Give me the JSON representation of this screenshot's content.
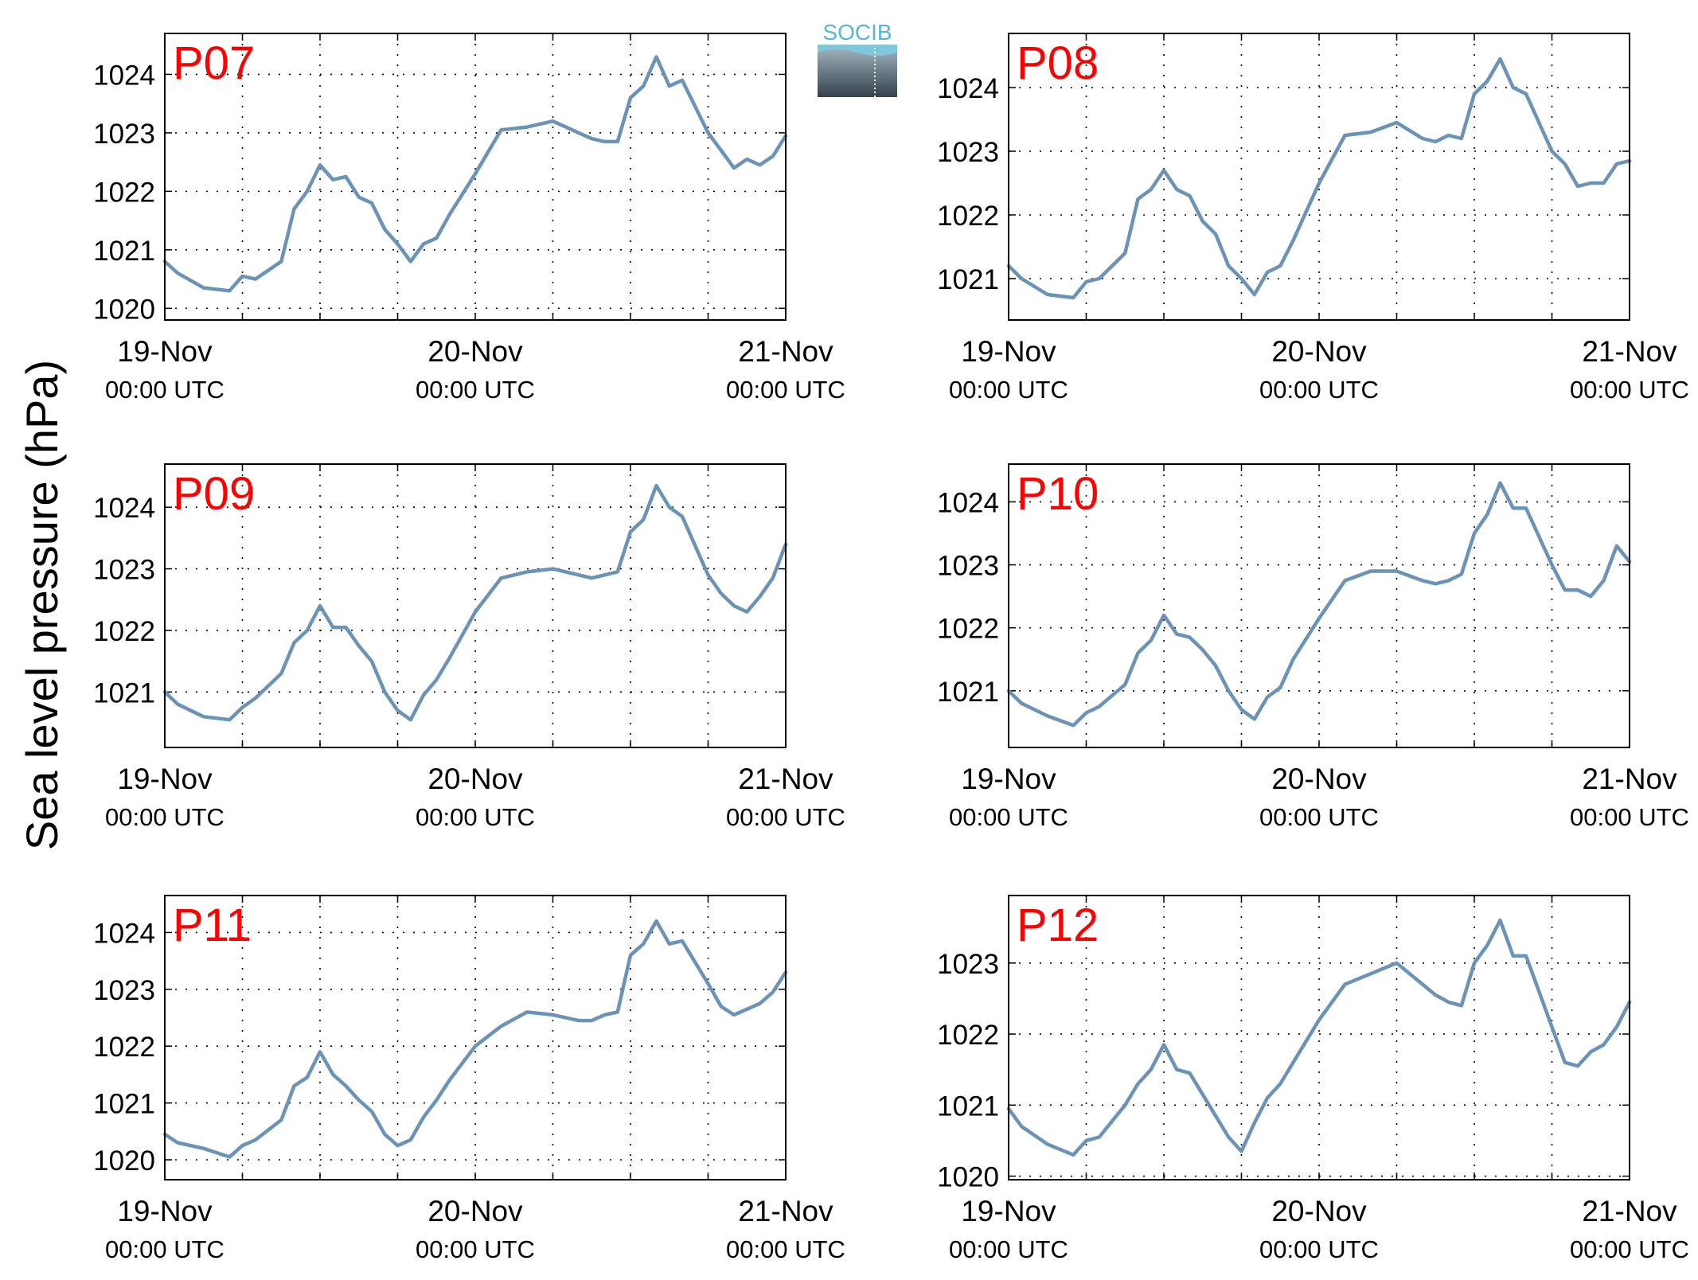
{
  "figure": {
    "ylabel": "Sea level pressure (hPa)",
    "logo_text": "SOCIB",
    "line_color": "#6b93b7",
    "label_color": "#ff0000",
    "grid": "dotted"
  },
  "chart_data": [
    {
      "type": "line",
      "panel_label": "P07",
      "x_ticks": [
        {
          "date": "19-Nov",
          "time": "00:00 UTC"
        },
        {
          "date": "20-Nov",
          "time": "00:00 UTC"
        },
        {
          "date": "21-Nov",
          "time": "00:00 UTC"
        }
      ],
      "x": [
        "2014-11-19T00:00",
        "2014-11-19T01:00",
        "2014-11-19T03:00",
        "2014-11-19T05:00",
        "2014-11-19T06:00",
        "2014-11-19T07:00",
        "2014-11-19T09:00",
        "2014-11-19T10:00",
        "2014-11-19T11:00",
        "2014-11-19T12:00",
        "2014-11-19T13:00",
        "2014-11-19T14:00",
        "2014-11-19T15:00",
        "2014-11-19T16:00",
        "2014-11-19T17:00",
        "2014-11-19T18:00",
        "2014-11-19T19:00",
        "2014-11-19T20:00",
        "2014-11-19T21:00",
        "2014-11-19T22:00",
        "2014-11-20T00:00",
        "2014-11-20T02:00",
        "2014-11-20T04:00",
        "2014-11-20T06:00",
        "2014-11-20T08:00",
        "2014-11-20T09:00",
        "2014-11-20T10:00",
        "2014-11-20T11:00",
        "2014-11-20T12:00",
        "2014-11-20T13:00",
        "2014-11-20T14:00",
        "2014-11-20T15:00",
        "2014-11-20T16:00",
        "2014-11-20T18:00",
        "2014-11-20T19:00",
        "2014-11-20T20:00",
        "2014-11-20T21:00",
        "2014-11-20T22:00",
        "2014-11-20T23:00",
        "2014-11-21T00:00"
      ],
      "values": [
        1020.8,
        1020.6,
        1020.35,
        1020.3,
        1020.55,
        1020.5,
        1020.8,
        1021.7,
        1022.0,
        1022.45,
        1022.2,
        1022.25,
        1021.9,
        1021.8,
        1021.35,
        1021.1,
        1020.8,
        1021.1,
        1021.2,
        1021.6,
        1022.3,
        1023.05,
        1023.1,
        1023.2,
        1023.0,
        1022.9,
        1022.85,
        1022.85,
        1023.6,
        1023.8,
        1024.3,
        1023.8,
        1023.9,
        1023.0,
        1022.7,
        1022.4,
        1022.55,
        1022.45,
        1022.6,
        1022.95
      ],
      "ylim": [
        1019.8,
        1024.7
      ],
      "yticks": [
        1020,
        1021,
        1022,
        1023,
        1024
      ]
    },
    {
      "type": "line",
      "panel_label": "P08",
      "x_ticks": [
        {
          "date": "19-Nov",
          "time": "00:00 UTC"
        },
        {
          "date": "20-Nov",
          "time": "00:00 UTC"
        },
        {
          "date": "21-Nov",
          "time": "00:00 UTC"
        }
      ],
      "x": [
        "2014-11-19T00:00",
        "2014-11-19T01:00",
        "2014-11-19T03:00",
        "2014-11-19T05:00",
        "2014-11-19T06:00",
        "2014-11-19T07:00",
        "2014-11-19T09:00",
        "2014-11-19T10:00",
        "2014-11-19T11:00",
        "2014-11-19T12:00",
        "2014-11-19T13:00",
        "2014-11-19T14:00",
        "2014-11-19T15:00",
        "2014-11-19T16:00",
        "2014-11-19T17:00",
        "2014-11-19T18:00",
        "2014-11-19T19:00",
        "2014-11-19T20:00",
        "2014-11-19T21:00",
        "2014-11-19T22:00",
        "2014-11-20T00:00",
        "2014-11-20T02:00",
        "2014-11-20T04:00",
        "2014-11-20T06:00",
        "2014-11-20T08:00",
        "2014-11-20T09:00",
        "2014-11-20T10:00",
        "2014-11-20T11:00",
        "2014-11-20T12:00",
        "2014-11-20T13:00",
        "2014-11-20T14:00",
        "2014-11-20T15:00",
        "2014-11-20T16:00",
        "2014-11-20T18:00",
        "2014-11-20T19:00",
        "2014-11-20T20:00",
        "2014-11-20T21:00",
        "2014-11-20T22:00",
        "2014-11-20T23:00",
        "2014-11-21T00:00"
      ],
      "values": [
        1021.2,
        1021.0,
        1020.75,
        1020.7,
        1020.95,
        1021.0,
        1021.4,
        1022.25,
        1022.4,
        1022.7,
        1022.4,
        1022.3,
        1021.9,
        1021.7,
        1021.2,
        1021.0,
        1020.75,
        1021.1,
        1021.2,
        1021.6,
        1022.5,
        1023.25,
        1023.3,
        1023.45,
        1023.2,
        1023.15,
        1023.25,
        1023.2,
        1023.9,
        1024.1,
        1024.45,
        1024.0,
        1023.9,
        1023.0,
        1022.8,
        1022.45,
        1022.5,
        1022.5,
        1022.8,
        1022.85
      ],
      "ylim": [
        1020.35,
        1024.85
      ],
      "yticks": [
        1021,
        1022,
        1023,
        1024
      ]
    },
    {
      "type": "line",
      "panel_label": "P09",
      "x_ticks": [
        {
          "date": "19-Nov",
          "time": "00:00 UTC"
        },
        {
          "date": "20-Nov",
          "time": "00:00 UTC"
        },
        {
          "date": "21-Nov",
          "time": "00:00 UTC"
        }
      ],
      "x": [
        "2014-11-19T00:00",
        "2014-11-19T01:00",
        "2014-11-19T03:00",
        "2014-11-19T05:00",
        "2014-11-19T06:00",
        "2014-11-19T07:00",
        "2014-11-19T09:00",
        "2014-11-19T10:00",
        "2014-11-19T11:00",
        "2014-11-19T12:00",
        "2014-11-19T13:00",
        "2014-11-19T14:00",
        "2014-11-19T15:00",
        "2014-11-19T16:00",
        "2014-11-19T17:00",
        "2014-11-19T18:00",
        "2014-11-19T19:00",
        "2014-11-19T20:00",
        "2014-11-19T21:00",
        "2014-11-19T22:00",
        "2014-11-20T00:00",
        "2014-11-20T02:00",
        "2014-11-20T04:00",
        "2014-11-20T06:00",
        "2014-11-20T08:00",
        "2014-11-20T09:00",
        "2014-11-20T10:00",
        "2014-11-20T11:00",
        "2014-11-20T12:00",
        "2014-11-20T13:00",
        "2014-11-20T14:00",
        "2014-11-20T15:00",
        "2014-11-20T16:00",
        "2014-11-20T18:00",
        "2014-11-20T19:00",
        "2014-11-20T20:00",
        "2014-11-20T21:00",
        "2014-11-20T22:00",
        "2014-11-20T23:00",
        "2014-11-21T00:00"
      ],
      "values": [
        1021.0,
        1020.8,
        1020.6,
        1020.55,
        1020.75,
        1020.9,
        1021.3,
        1021.8,
        1022.0,
        1022.4,
        1022.05,
        1022.05,
        1021.75,
        1021.5,
        1021.0,
        1020.7,
        1020.55,
        1020.95,
        1021.2,
        1021.55,
        1022.3,
        1022.85,
        1022.95,
        1023.0,
        1022.9,
        1022.85,
        1022.9,
        1022.95,
        1023.6,
        1023.8,
        1024.35,
        1024.0,
        1023.85,
        1022.9,
        1022.6,
        1022.4,
        1022.3,
        1022.55,
        1022.85,
        1023.4
      ],
      "ylim": [
        1020.1,
        1024.7
      ],
      "yticks": [
        1021,
        1022,
        1023,
        1024
      ]
    },
    {
      "type": "line",
      "panel_label": "P10",
      "x_ticks": [
        {
          "date": "19-Nov",
          "time": "00:00 UTC"
        },
        {
          "date": "20-Nov",
          "time": "00:00 UTC"
        },
        {
          "date": "21-Nov",
          "time": "00:00 UTC"
        }
      ],
      "x": [
        "2014-11-19T00:00",
        "2014-11-19T01:00",
        "2014-11-19T03:00",
        "2014-11-19T05:00",
        "2014-11-19T06:00",
        "2014-11-19T07:00",
        "2014-11-19T09:00",
        "2014-11-19T10:00",
        "2014-11-19T11:00",
        "2014-11-19T12:00",
        "2014-11-19T13:00",
        "2014-11-19T14:00",
        "2014-11-19T15:00",
        "2014-11-19T16:00",
        "2014-11-19T17:00",
        "2014-11-19T18:00",
        "2014-11-19T19:00",
        "2014-11-19T20:00",
        "2014-11-19T21:00",
        "2014-11-19T22:00",
        "2014-11-20T00:00",
        "2014-11-20T02:00",
        "2014-11-20T04:00",
        "2014-11-20T06:00",
        "2014-11-20T08:00",
        "2014-11-20T09:00",
        "2014-11-20T10:00",
        "2014-11-20T11:00",
        "2014-11-20T12:00",
        "2014-11-20T13:00",
        "2014-11-20T14:00",
        "2014-11-20T15:00",
        "2014-11-20T16:00",
        "2014-11-20T18:00",
        "2014-11-20T19:00",
        "2014-11-20T20:00",
        "2014-11-20T21:00",
        "2014-11-20T22:00",
        "2014-11-20T23:00",
        "2014-11-21T00:00"
      ],
      "values": [
        1021.0,
        1020.8,
        1020.6,
        1020.45,
        1020.65,
        1020.75,
        1021.1,
        1021.6,
        1021.8,
        1022.2,
        1021.9,
        1021.85,
        1021.65,
        1021.4,
        1021.0,
        1020.7,
        1020.55,
        1020.9,
        1021.05,
        1021.5,
        1022.15,
        1022.75,
        1022.9,
        1022.9,
        1022.75,
        1022.7,
        1022.75,
        1022.85,
        1023.5,
        1023.8,
        1024.3,
        1023.9,
        1023.9,
        1023.0,
        1022.6,
        1022.6,
        1022.5,
        1022.75,
        1023.3,
        1023.05
      ],
      "ylim": [
        1020.1,
        1024.6
      ],
      "yticks": [
        1021,
        1022,
        1023,
        1024
      ]
    },
    {
      "type": "line",
      "panel_label": "P11",
      "x_ticks": [
        {
          "date": "19-Nov",
          "time": "00:00 UTC"
        },
        {
          "date": "20-Nov",
          "time": "00:00 UTC"
        },
        {
          "date": "21-Nov",
          "time": "00:00 UTC"
        }
      ],
      "x": [
        "2014-11-19T00:00",
        "2014-11-19T01:00",
        "2014-11-19T03:00",
        "2014-11-19T05:00",
        "2014-11-19T06:00",
        "2014-11-19T07:00",
        "2014-11-19T09:00",
        "2014-11-19T10:00",
        "2014-11-19T11:00",
        "2014-11-19T12:00",
        "2014-11-19T13:00",
        "2014-11-19T14:00",
        "2014-11-19T15:00",
        "2014-11-19T16:00",
        "2014-11-19T17:00",
        "2014-11-19T18:00",
        "2014-11-19T19:00",
        "2014-11-19T20:00",
        "2014-11-19T21:00",
        "2014-11-19T22:00",
        "2014-11-20T00:00",
        "2014-11-20T02:00",
        "2014-11-20T04:00",
        "2014-11-20T06:00",
        "2014-11-20T08:00",
        "2014-11-20T09:00",
        "2014-11-20T10:00",
        "2014-11-20T11:00",
        "2014-11-20T12:00",
        "2014-11-20T13:00",
        "2014-11-20T14:00",
        "2014-11-20T15:00",
        "2014-11-20T16:00",
        "2014-11-20T18:00",
        "2014-11-20T19:00",
        "2014-11-20T20:00",
        "2014-11-20T21:00",
        "2014-11-20T22:00",
        "2014-11-20T23:00",
        "2014-11-21T00:00"
      ],
      "values": [
        1020.45,
        1020.3,
        1020.2,
        1020.05,
        1020.25,
        1020.35,
        1020.7,
        1021.3,
        1021.45,
        1021.9,
        1021.5,
        1021.3,
        1021.05,
        1020.85,
        1020.45,
        1020.25,
        1020.35,
        1020.75,
        1021.05,
        1021.4,
        1022.0,
        1022.35,
        1022.6,
        1022.55,
        1022.45,
        1022.45,
        1022.55,
        1022.6,
        1023.6,
        1023.8,
        1024.2,
        1023.8,
        1023.85,
        1023.1,
        1022.7,
        1022.55,
        1022.65,
        1022.75,
        1022.95,
        1023.3
      ],
      "ylim": [
        1019.65,
        1024.65
      ],
      "yticks": [
        1020,
        1021,
        1022,
        1023,
        1024
      ]
    },
    {
      "type": "line",
      "panel_label": "P12",
      "x_ticks": [
        {
          "date": "19-Nov",
          "time": "00:00 UTC"
        },
        {
          "date": "20-Nov",
          "time": "00:00 UTC"
        },
        {
          "date": "21-Nov",
          "time": "00:00 UTC"
        }
      ],
      "x": [
        "2014-11-19T00:00",
        "2014-11-19T01:00",
        "2014-11-19T03:00",
        "2014-11-19T05:00",
        "2014-11-19T06:00",
        "2014-11-19T07:00",
        "2014-11-19T09:00",
        "2014-11-19T10:00",
        "2014-11-19T11:00",
        "2014-11-19T12:00",
        "2014-11-19T13:00",
        "2014-11-19T14:00",
        "2014-11-19T15:00",
        "2014-11-19T16:00",
        "2014-11-19T17:00",
        "2014-11-19T18:00",
        "2014-11-19T19:00",
        "2014-11-19T20:00",
        "2014-11-19T21:00",
        "2014-11-19T22:00",
        "2014-11-20T00:00",
        "2014-11-20T02:00",
        "2014-11-20T04:00",
        "2014-11-20T06:00",
        "2014-11-20T08:00",
        "2014-11-20T09:00",
        "2014-11-20T10:00",
        "2014-11-20T11:00",
        "2014-11-20T12:00",
        "2014-11-20T13:00",
        "2014-11-20T14:00",
        "2014-11-20T15:00",
        "2014-11-20T16:00",
        "2014-11-20T18:00",
        "2014-11-20T19:00",
        "2014-11-20T20:00",
        "2014-11-20T21:00",
        "2014-11-20T22:00",
        "2014-11-20T23:00",
        "2014-11-21T00:00"
      ],
      "values": [
        1020.95,
        1020.7,
        1020.45,
        1020.3,
        1020.5,
        1020.55,
        1021.0,
        1021.3,
        1021.5,
        1021.85,
        1021.5,
        1021.45,
        1021.15,
        1020.85,
        1020.55,
        1020.35,
        1020.75,
        1021.1,
        1021.3,
        1021.6,
        1022.2,
        1022.7,
        1022.85,
        1023.0,
        1022.7,
        1022.55,
        1022.45,
        1022.4,
        1023.0,
        1023.25,
        1023.6,
        1023.1,
        1023.1,
        1022.1,
        1021.6,
        1021.55,
        1021.75,
        1021.85,
        1022.1,
        1022.45
      ],
      "ylim": [
        1019.95,
        1023.95
      ],
      "yticks": [
        1020,
        1021,
        1022,
        1023
      ]
    }
  ]
}
